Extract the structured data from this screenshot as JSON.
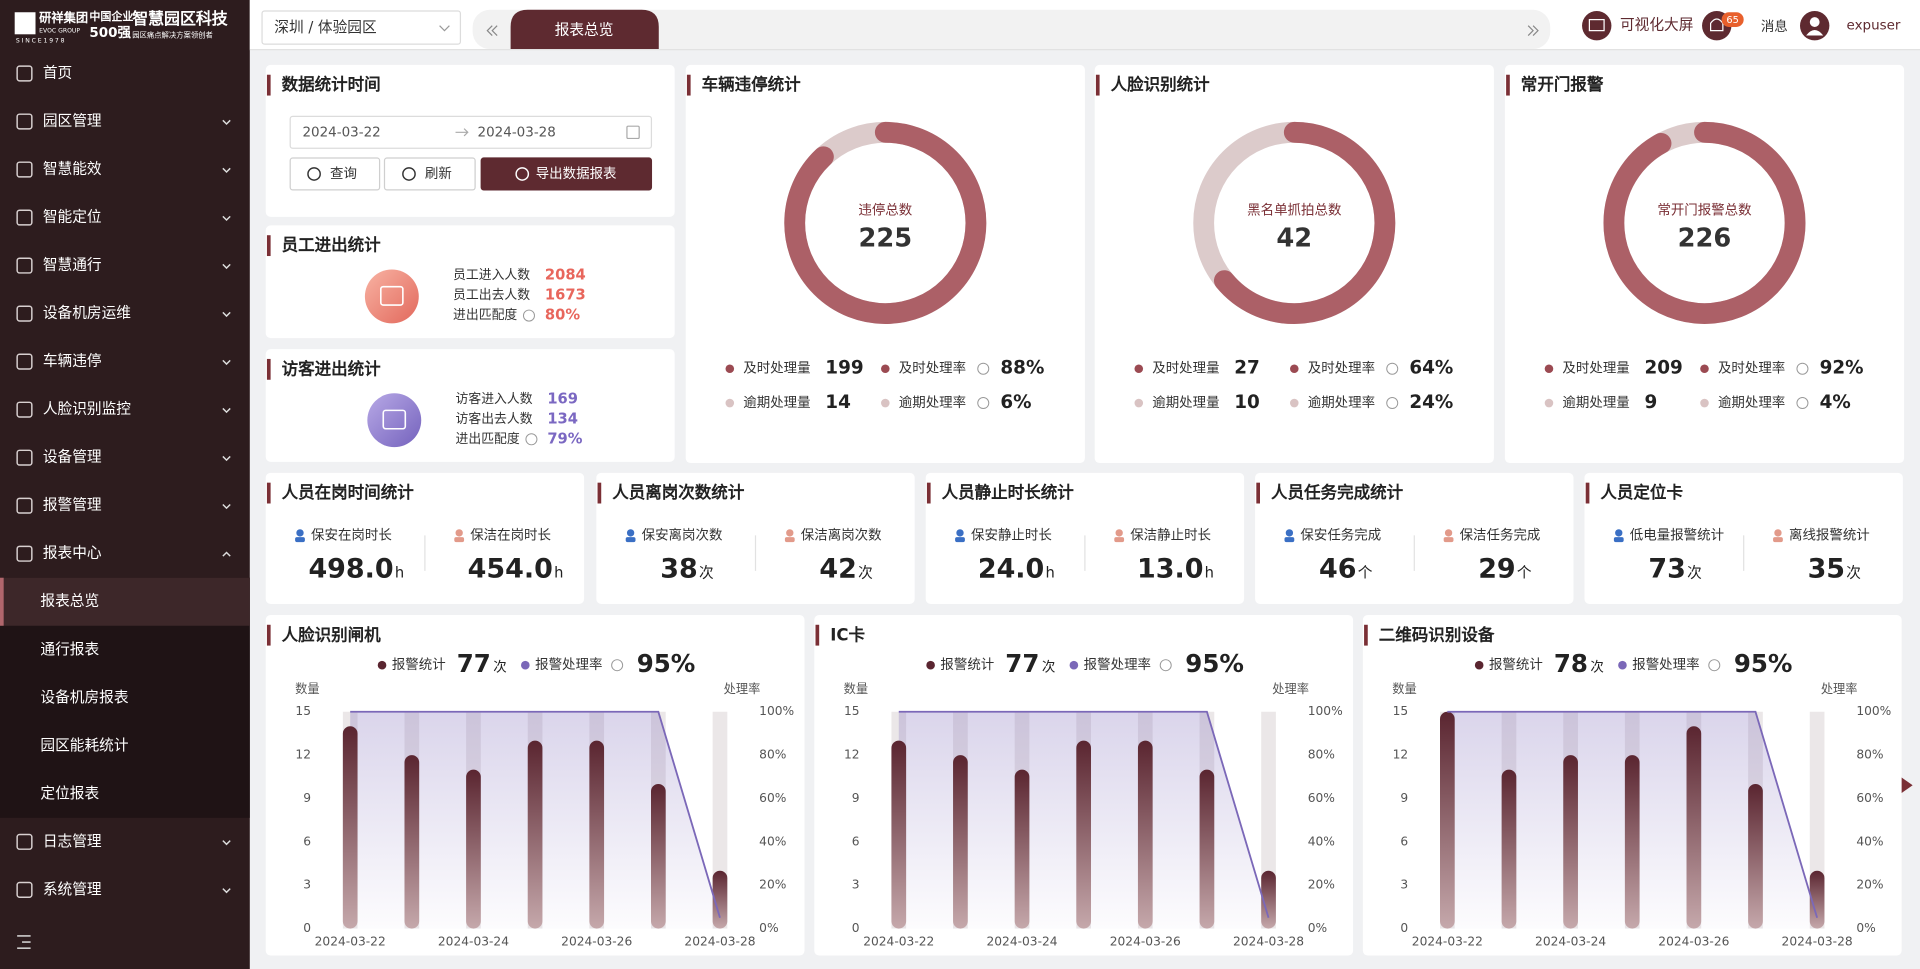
{
  "sidebar": {
    "logo": {
      "brand": "研祥集团",
      "brand_en": "EVOC GROUP",
      "since": "SINCE1978",
      "rank_top": "中国企业",
      "rank_bottom": "500强",
      "name": "智慧园区科技",
      "slogan": "园区痛点解决方案领创者"
    },
    "menu": [
      {
        "label": "首页"
      },
      {
        "label": "园区管理"
      },
      {
        "label": "智慧能效"
      },
      {
        "label": "智能定位"
      },
      {
        "label": "智慧通行"
      },
      {
        "label": "设备机房运维"
      },
      {
        "label": "车辆违停"
      },
      {
        "label": "人脸识别监控"
      },
      {
        "label": "设备管理"
      },
      {
        "label": "报警管理"
      },
      {
        "label": "报表中心",
        "children": [
          "报表总览",
          "通行报表",
          "设备机房报表",
          "园区能耗统计",
          "定位报表"
        ]
      },
      {
        "label": "日志管理"
      },
      {
        "label": "系统管理"
      }
    ]
  },
  "header": {
    "location": "深圳 / 体验园区",
    "tab": "报表总览",
    "screen": "可视化大屏",
    "badge": 65,
    "message": "消息",
    "user": "expuser"
  },
  "filter": {
    "title": "数据统计时间",
    "start": "2024-03-22",
    "end": "2024-03-28",
    "buttons": [
      "查询",
      "刷新",
      "导出数据报表"
    ]
  },
  "people": [
    {
      "title": "员工进出统计",
      "color": "#e8665c",
      "rows": [
        {
          "label": "员工进入人数",
          "value": 2084
        },
        {
          "label": "员工出去人数",
          "value": 1673
        },
        {
          "label": "进出匹配度",
          "value": "80%"
        }
      ]
    },
    {
      "title": "访客进出统计",
      "color": "#7b68c2",
      "rows": [
        {
          "label": "访客进入人数",
          "value": 169
        },
        {
          "label": "访客出去人数",
          "value": 134
        },
        {
          "label": "进出匹配度",
          "value": "79%"
        }
      ]
    }
  ],
  "donuts": [
    {
      "title": "车辆违停统计",
      "center_label": "违停总数",
      "total": 225,
      "stats": [
        {
          "label": "及时处理量",
          "value": 199
        },
        {
          "label": "及时处理率",
          "value": 88,
          "value_label": "88%"
        },
        {
          "label": "逾期处理量",
          "value": 14
        },
        {
          "label": "逾期处理率",
          "value": 6,
          "value_label": "6%"
        }
      ]
    },
    {
      "title": "人脸识别统计",
      "center_label": "黑名单抓拍总数",
      "total": 42,
      "stats": [
        {
          "label": "及时处理量",
          "value": 27
        },
        {
          "label": "及时处理率",
          "value": 64,
          "value_label": "64%"
        },
        {
          "label": "逾期处理量",
          "value": 10
        },
        {
          "label": "逾期处理率",
          "value": 24,
          "value_label": "24%"
        }
      ]
    },
    {
      "title": "常开门报警",
      "center_label": "常开门报警总数",
      "total": 226,
      "stats": [
        {
          "label": "及时处理量",
          "value": 209
        },
        {
          "label": "及时处理率",
          "value": 92,
          "value_label": "92%"
        },
        {
          "label": "逾期处理量",
          "value": 9
        },
        {
          "label": "逾期处理率",
          "value": 4,
          "value_label": "4%"
        }
      ]
    }
  ],
  "stats": [
    {
      "title": "人员在岗时间统计",
      "items": [
        {
          "label": "保安在岗时长",
          "value": "498.0",
          "unit": "h"
        },
        {
          "label": "保洁在岗时长",
          "value": "454.0",
          "unit": "h"
        }
      ]
    },
    {
      "title": "人员离岗次数统计",
      "items": [
        {
          "label": "保安离岗次数",
          "value": 38,
          "unit": "次"
        },
        {
          "label": "保洁离岗次数",
          "value": 42,
          "unit": "次"
        }
      ]
    },
    {
      "title": "人员静止时长统计",
      "items": [
        {
          "label": "保安静止时长",
          "value": "24.0",
          "unit": "h"
        },
        {
          "label": "保洁静止时长",
          "value": "13.0",
          "unit": "h"
        }
      ]
    },
    {
      "title": "人员任务完成统计",
      "items": [
        {
          "label": "保安任务完成",
          "value": 46,
          "unit": "个"
        },
        {
          "label": "保洁任务完成",
          "value": 29,
          "unit": "个"
        }
      ]
    },
    {
      "title": "人员定位卡",
      "items": [
        {
          "label": "低电量报警统计",
          "value": 73,
          "unit": "次"
        },
        {
          "label": "离线报警统计",
          "value": 35,
          "unit": "次"
        }
      ]
    }
  ],
  "charts": [
    {
      "type": "bar",
      "title": "人脸识别闸机",
      "total": 77,
      "total_unit": "次",
      "rate": "95%",
      "y_label": "数量",
      "y2_label": "处理率",
      "categories": [
        "2024-03-22",
        null,
        "2024-03-24",
        null,
        "2024-03-26",
        null,
        "2024-03-28"
      ],
      "series": [
        {
          "name": "报警统计",
          "color": "#5a2530",
          "values": [
            14,
            12,
            11,
            13,
            13,
            10,
            4
          ]
        },
        {
          "name": "报警处理率",
          "color": "#7b68b8",
          "axis": "y2",
          "values": [
            100,
            100,
            100,
            100,
            100,
            100,
            5
          ]
        }
      ],
      "ylim": [
        0,
        15
      ],
      "yticks": [
        0,
        3,
        6,
        9,
        12,
        15
      ],
      "y2lim": [
        0,
        100
      ],
      "y2ticks": [
        {
          "value": 0,
          "label": "0%"
        },
        {
          "value": 20,
          "label": "20%"
        },
        {
          "value": 40,
          "label": "40%"
        },
        {
          "value": 60,
          "label": "60%"
        },
        {
          "value": 80,
          "label": "80%"
        },
        {
          "value": 100,
          "label": "100%"
        }
      ]
    },
    {
      "type": "bar",
      "title": "IC卡",
      "total": 77,
      "total_unit": "次",
      "rate": "95%",
      "y_label": "数量",
      "y2_label": "处理率",
      "categories": [
        "2024-03-22",
        null,
        "2024-03-24",
        null,
        "2024-03-26",
        null,
        "2024-03-28"
      ],
      "series": [
        {
          "name": "报警统计",
          "color": "#5a2530",
          "values": [
            13,
            12,
            11,
            13,
            13,
            11,
            4
          ]
        },
        {
          "name": "报警处理率",
          "color": "#7b68b8",
          "axis": "y2",
          "values": [
            100,
            100,
            100,
            100,
            100,
            100,
            5
          ]
        }
      ],
      "ylim": [
        0,
        15
      ],
      "yticks": [
        0,
        3,
        6,
        9,
        12,
        15
      ],
      "y2lim": [
        0,
        100
      ],
      "y2ticks": [
        {
          "value": 0,
          "label": "0%"
        },
        {
          "value": 20,
          "label": "20%"
        },
        {
          "value": 40,
          "label": "40%"
        },
        {
          "value": 60,
          "label": "60%"
        },
        {
          "value": 80,
          "label": "80%"
        },
        {
          "value": 100,
          "label": "100%"
        }
      ]
    },
    {
      "type": "bar",
      "title": "二维码识别设备",
      "total": 78,
      "total_unit": "次",
      "rate": "95%",
      "y_label": "数量",
      "y2_label": "处理率",
      "categories": [
        "2024-03-22",
        null,
        "2024-03-24",
        null,
        "2024-03-26",
        null,
        "2024-03-28"
      ],
      "series": [
        {
          "name": "报警统计",
          "color": "#5a2530",
          "values": [
            15,
            11,
            12,
            12,
            14,
            10,
            4
          ]
        },
        {
          "name": "报警处理率",
          "color": "#7b68b8",
          "axis": "y2",
          "values": [
            100,
            100,
            100,
            100,
            100,
            100,
            5
          ]
        }
      ],
      "ylim": [
        0,
        15
      ],
      "yticks": [
        0,
        3,
        6,
        9,
        12,
        15
      ],
      "y2lim": [
        0,
        100
      ],
      "y2ticks": [
        {
          "value": 0,
          "label": "0%"
        },
        {
          "value": 20,
          "label": "20%"
        },
        {
          "value": 40,
          "label": "40%"
        },
        {
          "value": 60,
          "label": "60%"
        },
        {
          "value": 80,
          "label": "80%"
        },
        {
          "value": 100,
          "label": "100%"
        }
      ]
    }
  ]
}
